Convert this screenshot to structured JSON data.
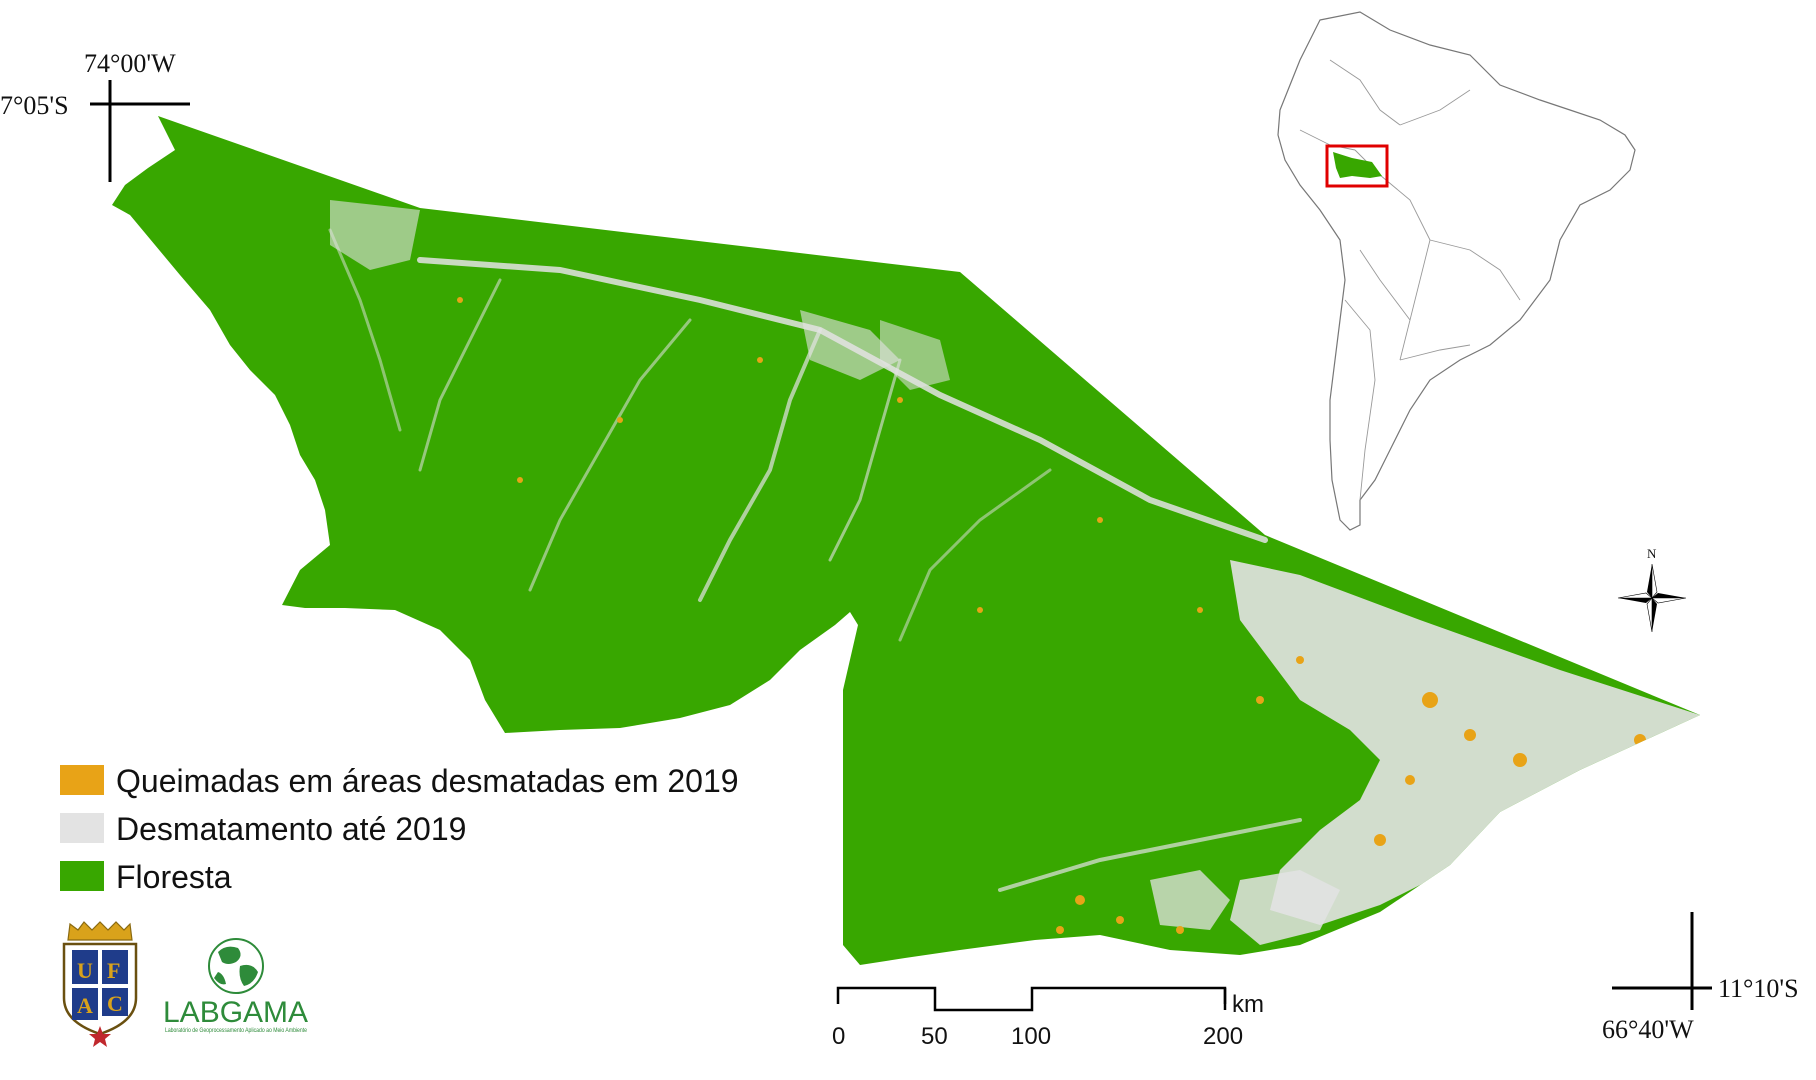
{
  "coordinates": {
    "top_left_lon": "74°00'W",
    "top_left_lat": "7°05'S",
    "bottom_right_lat": "11°10'S",
    "bottom_right_lon": "66°40'W"
  },
  "legend": {
    "items": [
      {
        "label": "Queimadas em áreas desmatadas em 2019",
        "color": "#e8a317"
      },
      {
        "label": "Desmatamento até 2019",
        "color": "#e3e3e3"
      },
      {
        "label": "Floresta",
        "color": "#38a700"
      }
    ]
  },
  "scale_bar": {
    "ticks": [
      "0",
      "50",
      "100",
      "200"
    ],
    "unit": "km"
  },
  "north_arrow": {
    "label": "N"
  },
  "inset": {
    "highlight_color": "#e00000"
  },
  "logos": {
    "ufac_letters": [
      "U",
      "F",
      "A",
      "C"
    ],
    "labgama": "LABGAMA",
    "labgama_subtitle": "Laboratório de Geoprocessamento Aplicado ao Meio Ambiente"
  }
}
